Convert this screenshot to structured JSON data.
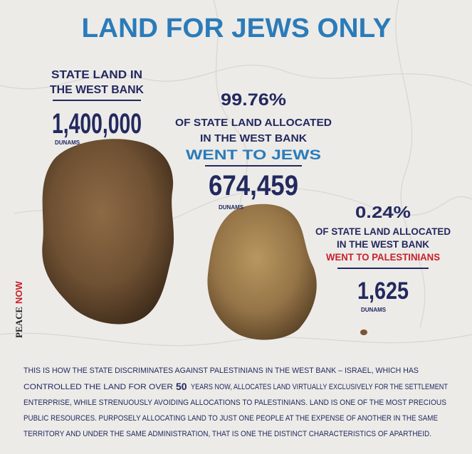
{
  "title": "LAND FOR JEWS ONLY",
  "state_land": {
    "heading": [
      "STATE LAND IN",
      "THE WEST BANK"
    ],
    "amount": "1,400,000",
    "unit": "DUNAMS"
  },
  "jews": {
    "percent": "99.76%",
    "description": [
      "OF STATE LAND ALLOCATED",
      "IN THE WEST BANK"
    ],
    "highlight": "WENT TO JEWS",
    "amount": "674,459",
    "unit": "DUNAMS"
  },
  "palestinians": {
    "percent": "0.24%",
    "description": [
      "OF STATE LAND ALLOCATED",
      "IN THE WEST BANK"
    ],
    "highlight": "WENT TO PALESTINIANS",
    "amount": "1,625",
    "unit": "DUNAMS"
  },
  "logo": [
    "PEACE",
    "NOW"
  ],
  "body": {
    "lines": [
      "THIS IS HOW THE STATE DISCRIMINATES AGAINST PALESTINIANS IN THE WEST BANK – ISRAEL, WHICH HAS",
      [
        "CONTROLLED THE LAND FOR OVER",
        "50",
        "YEARS NOW, ALLOCATES LAND VIRTUALLY EXCLUSIVELY FOR THE SETTLEMENT"
      ],
      "ENTERPRISE, WHILE STRENUOUSLY AVOIDING ALLOCATIONS TO PALESTINIANS. LAND IS ONE OF THE MOST PRECIOUS",
      "PUBLIC RESOURCES. PURPOSELY ALLOCATING LAND TO JUST ONE PEOPLE AT THE EXPENSE OF ANOTHER IN THE SAME",
      "TERRITORY AND UNDER THE SAME ADMINISTRATION, THAT IS ONE THE DISTINCT CHARACTERISTICS OF APARTHEID."
    ]
  }
}
